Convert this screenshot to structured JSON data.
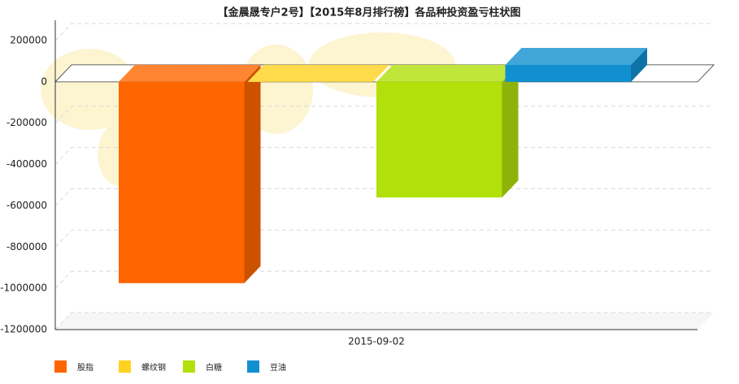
{
  "chart_data": {
    "type": "bar",
    "title": "【金晨晟专户2号】【2015年8月排行榜】各品种投资盈亏柱状图",
    "categories": [
      "2015-09-02"
    ],
    "series": [
      {
        "name": "股指",
        "color": "#ff6600",
        "values": [
          -975000
        ]
      },
      {
        "name": "螺纹钢",
        "color": "#ffd21f",
        "values": [
          0
        ]
      },
      {
        "name": "白糖",
        "color": "#b2e00a",
        "values": [
          -560000
        ]
      },
      {
        "name": "豆油",
        "color": "#1090d0",
        "values": [
          82000
        ]
      }
    ],
    "ylim": [
      -1200000,
      200000
    ],
    "yticks": [
      200000,
      0,
      -200000,
      -400000,
      -600000,
      -800000,
      -1000000,
      -1200000
    ],
    "grid": true
  }
}
